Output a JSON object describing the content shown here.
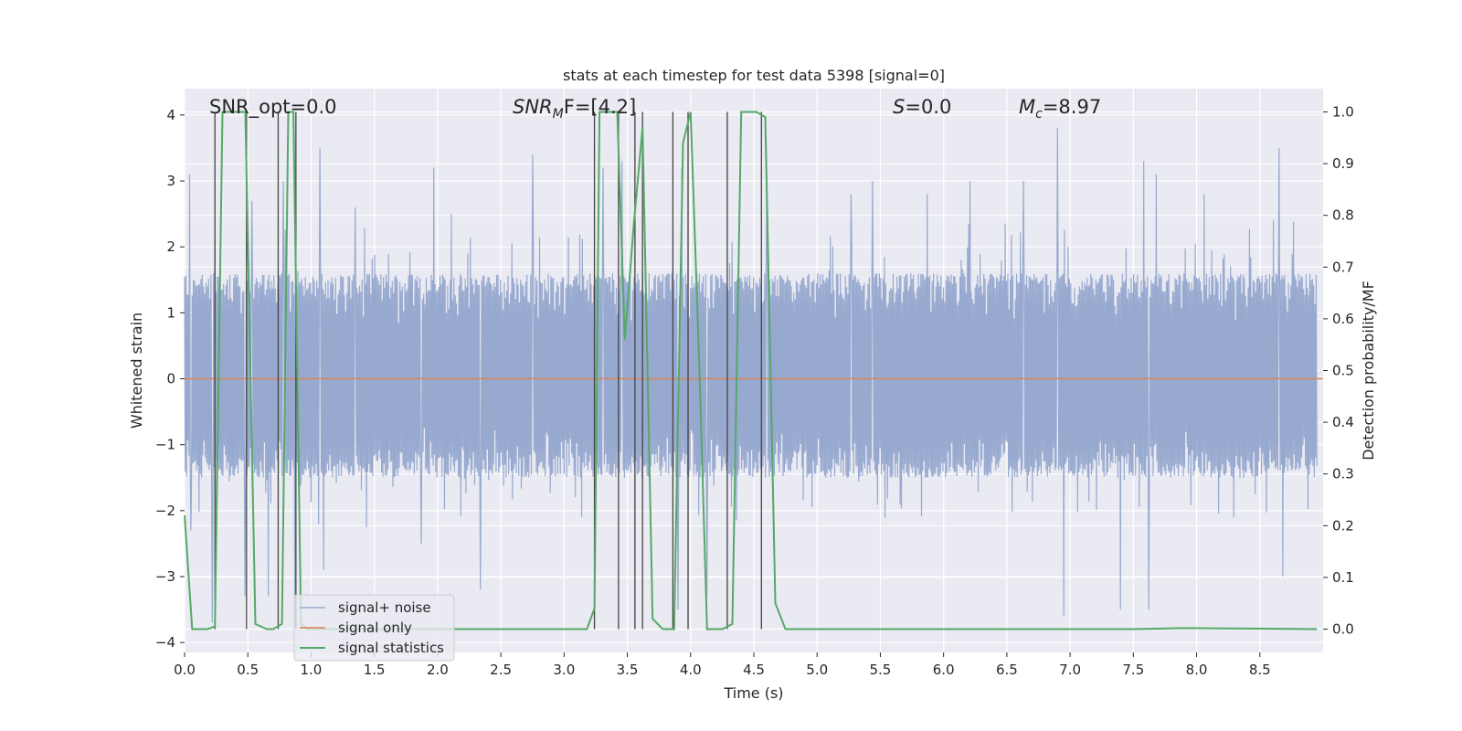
{
  "chart_data": {
    "type": "line",
    "title": "stats at each timestep for test data 5398 [signal=0]",
    "xlabel": "Time (s)",
    "ylabel_left": "Whitened strain",
    "ylabel_right": "Detection probability/MF",
    "xlim": [
      0.0,
      9.0
    ],
    "ylim_left": [
      -4.15,
      4.4
    ],
    "ylim_right": [
      -0.045,
      1.045
    ],
    "x_ticks": [
      0.0,
      0.5,
      1.0,
      1.5,
      2.0,
      2.5,
      3.0,
      3.5,
      4.0,
      4.5,
      5.0,
      5.5,
      6.0,
      6.5,
      7.0,
      7.5,
      8.0,
      8.5
    ],
    "x_tick_labels": [
      "0.0",
      "0.5",
      "1.0",
      "1.5",
      "2.0",
      "2.5",
      "3.0",
      "3.5",
      "4.0",
      "4.5",
      "5.0",
      "5.5",
      "6.0",
      "6.5",
      "7.0",
      "7.5",
      "8.0",
      "8.5"
    ],
    "y_left_ticks": [
      -4,
      -3,
      -2,
      -1,
      0,
      1,
      2,
      3,
      4
    ],
    "y_left_tick_labels": [
      "−4",
      "−3",
      "−2",
      "−1",
      "0",
      "1",
      "2",
      "3",
      "4"
    ],
    "y_right_ticks": [
      0.0,
      0.1,
      0.2,
      0.3,
      0.4,
      0.5,
      0.6,
      0.7,
      0.8,
      0.9,
      1.0
    ],
    "y_right_tick_labels": [
      "0.0",
      "0.1",
      "0.2",
      "0.3",
      "0.4",
      "0.5",
      "0.6",
      "0.7",
      "0.8",
      "0.9",
      "1.0"
    ],
    "grid": true,
    "legend_position": "lower-left",
    "annotations": {
      "snr_opt": "SNR_opt=0.0",
      "snr_mf_base": "SNR",
      "snr_mf_sub": "M",
      "snr_mf_rest": "F=[4.2]",
      "s_label": "S",
      "s_value": "=0.0",
      "mc_base": "M",
      "mc_sub": "c",
      "mc_value": "=8.97"
    },
    "series": [
      {
        "name": "signal+ noise",
        "color": "#97a9cf",
        "description": "whitened noise trace, dense band roughly between -1.5 and 1.6 with spikes up to about 3.5 and down to about -3.6",
        "band": [
          -1.5,
          1.6
        ],
        "peaks": [
          [
            0.04,
            3.1
          ],
          [
            0.53,
            2.7
          ],
          [
            0.78,
            3.0
          ],
          [
            1.07,
            3.5
          ],
          [
            1.35,
            2.6
          ],
          [
            1.97,
            3.2
          ],
          [
            2.11,
            2.5
          ],
          [
            2.75,
            3.4
          ],
          [
            3.31,
            3.2
          ],
          [
            3.46,
            3.3
          ],
          [
            3.93,
            3.2
          ],
          [
            4.6,
            2.8
          ],
          [
            5.27,
            2.8
          ],
          [
            5.44,
            3.0
          ],
          [
            5.87,
            2.8
          ],
          [
            6.21,
            3.0
          ],
          [
            6.63,
            3.0
          ],
          [
            6.9,
            3.8
          ],
          [
            7.58,
            3.3
          ],
          [
            7.68,
            3.1
          ],
          [
            8.06,
            2.8
          ],
          [
            8.65,
            3.5
          ],
          [
            8.97,
            3.2
          ]
        ],
        "troughs": [
          [
            0.05,
            -2.3
          ],
          [
            0.22,
            -3.7
          ],
          [
            0.48,
            -3.3
          ],
          [
            0.66,
            -3.3
          ],
          [
            0.87,
            -3.3
          ],
          [
            1.1,
            -2.9
          ],
          [
            1.87,
            -2.5
          ],
          [
            2.34,
            -3.2
          ],
          [
            3.9,
            -3.5
          ],
          [
            4.13,
            -3.3
          ],
          [
            6.95,
            -3.6
          ],
          [
            7.4,
            -3.5
          ],
          [
            7.62,
            -3.5
          ],
          [
            8.68,
            -3.0
          ],
          [
            8.96,
            -2.9
          ]
        ]
      },
      {
        "name": "signal only",
        "color": "#dd8452",
        "x": [
          0.0,
          9.0
        ],
        "y": [
          0.0,
          0.0
        ]
      },
      {
        "name": "signal statistics",
        "color": "#55a868",
        "axis": "right",
        "x": [
          0.0,
          0.06,
          0.18,
          0.24,
          0.3,
          0.48,
          0.56,
          0.65,
          0.7,
          0.77,
          0.82,
          0.86,
          0.92,
          0.97,
          1.05,
          3.18,
          3.24,
          3.28,
          3.35,
          3.42,
          3.48,
          3.55,
          3.62,
          3.7,
          3.78,
          3.87,
          3.94,
          4.0,
          4.07,
          4.13,
          4.25,
          4.33,
          4.4,
          4.52,
          4.59,
          4.67,
          4.75,
          7.5,
          7.9,
          8.95
        ],
        "y": [
          0.22,
          0.0,
          0.0,
          0.005,
          1.0,
          1.0,
          0.01,
          0.0,
          0.0,
          0.01,
          1.0,
          1.0,
          0.01,
          0.0,
          0.0,
          0.0,
          0.04,
          1.0,
          1.0,
          1.0,
          0.56,
          0.78,
          0.97,
          0.02,
          0.0,
          0.0,
          0.94,
          1.0,
          0.5,
          0.0,
          0.0,
          0.01,
          1.0,
          1.0,
          0.99,
          0.05,
          0.0,
          0.0,
          0.002,
          0.0
        ]
      }
    ],
    "vertical_markers": {
      "color": "#444444",
      "x": [
        0.24,
        0.49,
        0.74,
        0.88,
        3.24,
        3.43,
        3.56,
        3.62,
        3.86,
        3.98,
        4.29,
        4.56
      ],
      "y_range": [
        0.0,
        1.0
      ]
    }
  }
}
